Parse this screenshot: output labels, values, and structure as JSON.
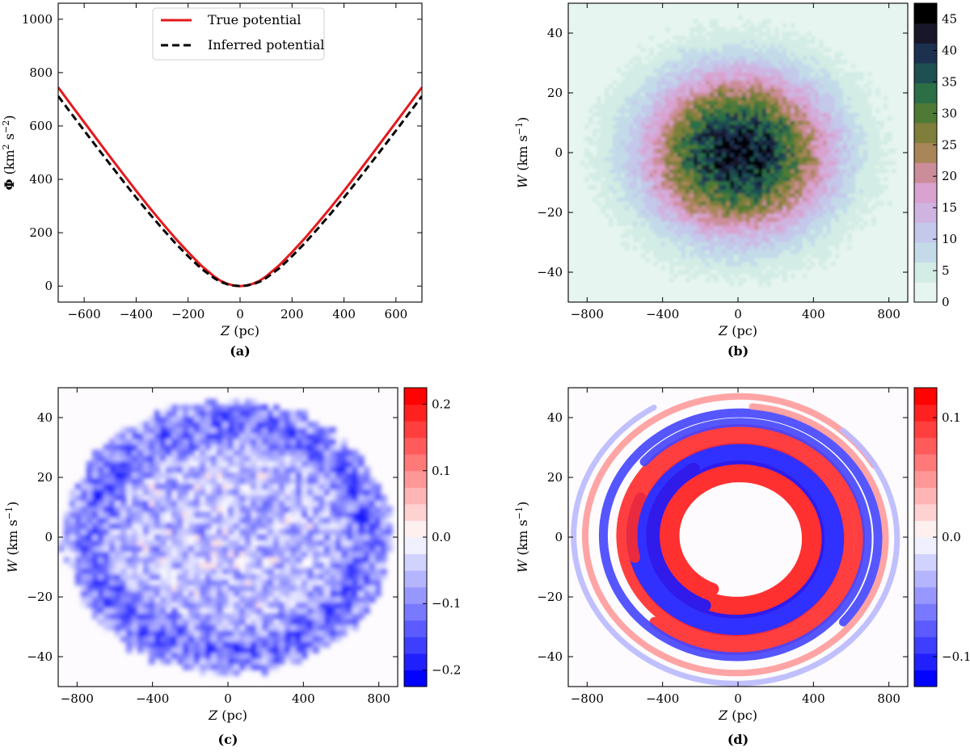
{
  "chart_data": [
    {
      "type": "line",
      "panel": "(a)",
      "xlabel": "Z (pc)",
      "ylabel": "Φ (km² s⁻²)",
      "xlim": [
        -700,
        700
      ],
      "ylim": [
        -60,
        1060
      ],
      "xticks": [
        -600,
        -400,
        -200,
        0,
        200,
        400,
        600
      ],
      "xtick_labels": [
        "−600",
        "−400",
        "−200",
        "0",
        "200",
        "400",
        "600"
      ],
      "yticks": [
        0,
        200,
        400,
        600,
        800,
        1000
      ],
      "ytick_labels": [
        "0",
        "200",
        "400",
        "600",
        "800",
        "1000"
      ],
      "legend_position": "top-center",
      "series": [
        {
          "name": "True potential",
          "color": "#e41a1c",
          "style": "solid",
          "x": [
            -700,
            -650,
            -600,
            -550,
            -500,
            -450,
            -400,
            -350,
            -300,
            -250,
            -200,
            -150,
            -100,
            -75,
            -50,
            -25,
            0,
            25,
            50,
            75,
            100,
            150,
            200,
            250,
            300,
            350,
            400,
            450,
            500,
            550,
            600,
            650,
            700
          ],
          "y": [
            745,
            679,
            614,
            549,
            484,
            420,
            357,
            296,
            237,
            180,
            127,
            77,
            36,
            20,
            9,
            2,
            0,
            2,
            9,
            20,
            36,
            77,
            127,
            180,
            237,
            296,
            357,
            420,
            484,
            549,
            614,
            679,
            745
          ]
        },
        {
          "name": "Inferred potential",
          "color": "#000000",
          "style": "dashed",
          "x": [
            -700,
            -650,
            -600,
            -550,
            -500,
            -450,
            -400,
            -350,
            -300,
            -250,
            -200,
            -150,
            -100,
            -75,
            -50,
            -25,
            0,
            25,
            50,
            75,
            100,
            150,
            200,
            250,
            300,
            350,
            400,
            450,
            500,
            550,
            600,
            650,
            700
          ],
          "y": [
            712,
            647,
            583,
            519,
            456,
            393,
            332,
            273,
            216,
            162,
            112,
            66,
            30,
            16,
            7,
            2,
            0,
            2,
            7,
            16,
            30,
            66,
            112,
            162,
            216,
            273,
            332,
            393,
            456,
            519,
            583,
            647,
            712
          ]
        }
      ]
    },
    {
      "type": "heatmap",
      "panel": "(b)",
      "xlabel": "Z (pc)",
      "ylabel": "W (km s⁻¹)",
      "xlim": [
        -900,
        900
      ],
      "ylim": [
        -50,
        50
      ],
      "xticks": [
        -800,
        -400,
        0,
        400,
        800
      ],
      "xtick_labels": [
        "−800",
        "−400",
        "0",
        "400",
        "800"
      ],
      "yticks": [
        -40,
        -20,
        0,
        20,
        40
      ],
      "ytick_labels": [
        "−40",
        "−20",
        "0",
        "20",
        "40"
      ],
      "colorbar": {
        "min": 0,
        "max": 47.5,
        "ticks": [
          0,
          5,
          10,
          15,
          20,
          25,
          30,
          35,
          40,
          45
        ],
        "tick_labels": [
          "0",
          "5",
          "10",
          "15",
          "20",
          "25",
          "30",
          "35",
          "40",
          "45"
        ],
        "colors": [
          "#e6f5ef",
          "#d3ece5",
          "#c3dbe9",
          "#c4c8ea",
          "#cfb4e0",
          "#d9a2cf",
          "#cc8d9a",
          "#a98659",
          "#7f7e3a",
          "#4f7a36",
          "#2c6e46",
          "#1e4f51",
          "#1c3050",
          "#171729",
          "#000000"
        ]
      },
      "description": "2D histogram of stellar density, peak ~45 near the origin, falling off with radius ~ 45 km/s scale",
      "peak": 45,
      "center": [
        0,
        0
      ]
    },
    {
      "type": "heatmap",
      "panel": "(c)",
      "xlabel": "Z (pc)",
      "ylabel": "W (km s⁻¹)",
      "xlim": [
        -900,
        900
      ],
      "ylim": [
        -50,
        50
      ],
      "xticks": [
        -800,
        -400,
        0,
        400,
        800
      ],
      "xtick_labels": [
        "−800",
        "−400",
        "0",
        "400",
        "800"
      ],
      "yticks": [
        -40,
        -20,
        0,
        20,
        40
      ],
      "ytick_labels": [
        "−40",
        "−20",
        "0",
        "20",
        "40"
      ],
      "colorbar": {
        "min": -0.225,
        "max": 0.225,
        "ticks": [
          -0.2,
          -0.1,
          0.0,
          0.1,
          0.2
        ],
        "tick_labels": [
          "−0.2",
          "−0.1",
          "0.0",
          "0.1",
          "0.2"
        ],
        "colormap": "bwr"
      },
      "description": "Noisy residual, mostly negative (blue) inside a disc of radius ~45 km/s, strongest on the rim"
    },
    {
      "type": "heatmap",
      "panel": "(d)",
      "xlabel": "Z (pc)",
      "ylabel": "W (km s⁻¹)",
      "xlim": [
        -900,
        900
      ],
      "ylim": [
        -50,
        50
      ],
      "xticks": [
        -800,
        -400,
        0,
        400,
        800
      ],
      "xtick_labels": [
        "−800",
        "−400",
        "0",
        "400",
        "800"
      ],
      "yticks": [
        -40,
        -20,
        0,
        20,
        40
      ],
      "ytick_labels": [
        "−40",
        "−20",
        "0",
        "20",
        "40"
      ],
      "colorbar": {
        "min": -0.125,
        "max": 0.125,
        "ticks": [
          -0.1,
          0.0,
          0.1
        ],
        "tick_labels": [
          "−0.1",
          "0.0",
          "0.1"
        ],
        "colormap": "bwr"
      },
      "description": "Phase spiral: alternating red and blue spiral arms between radius ~20 and ~45 km/s"
    }
  ],
  "panels": {
    "a_label": "(a)",
    "b_label": "(b)",
    "c_label": "(c)",
    "d_label": "(d)"
  },
  "legend": {
    "true_label": "True potential",
    "inferred_label": "Inferred potential"
  },
  "colors": {
    "red": "#e41a1c",
    "blue": "#0000ff"
  }
}
